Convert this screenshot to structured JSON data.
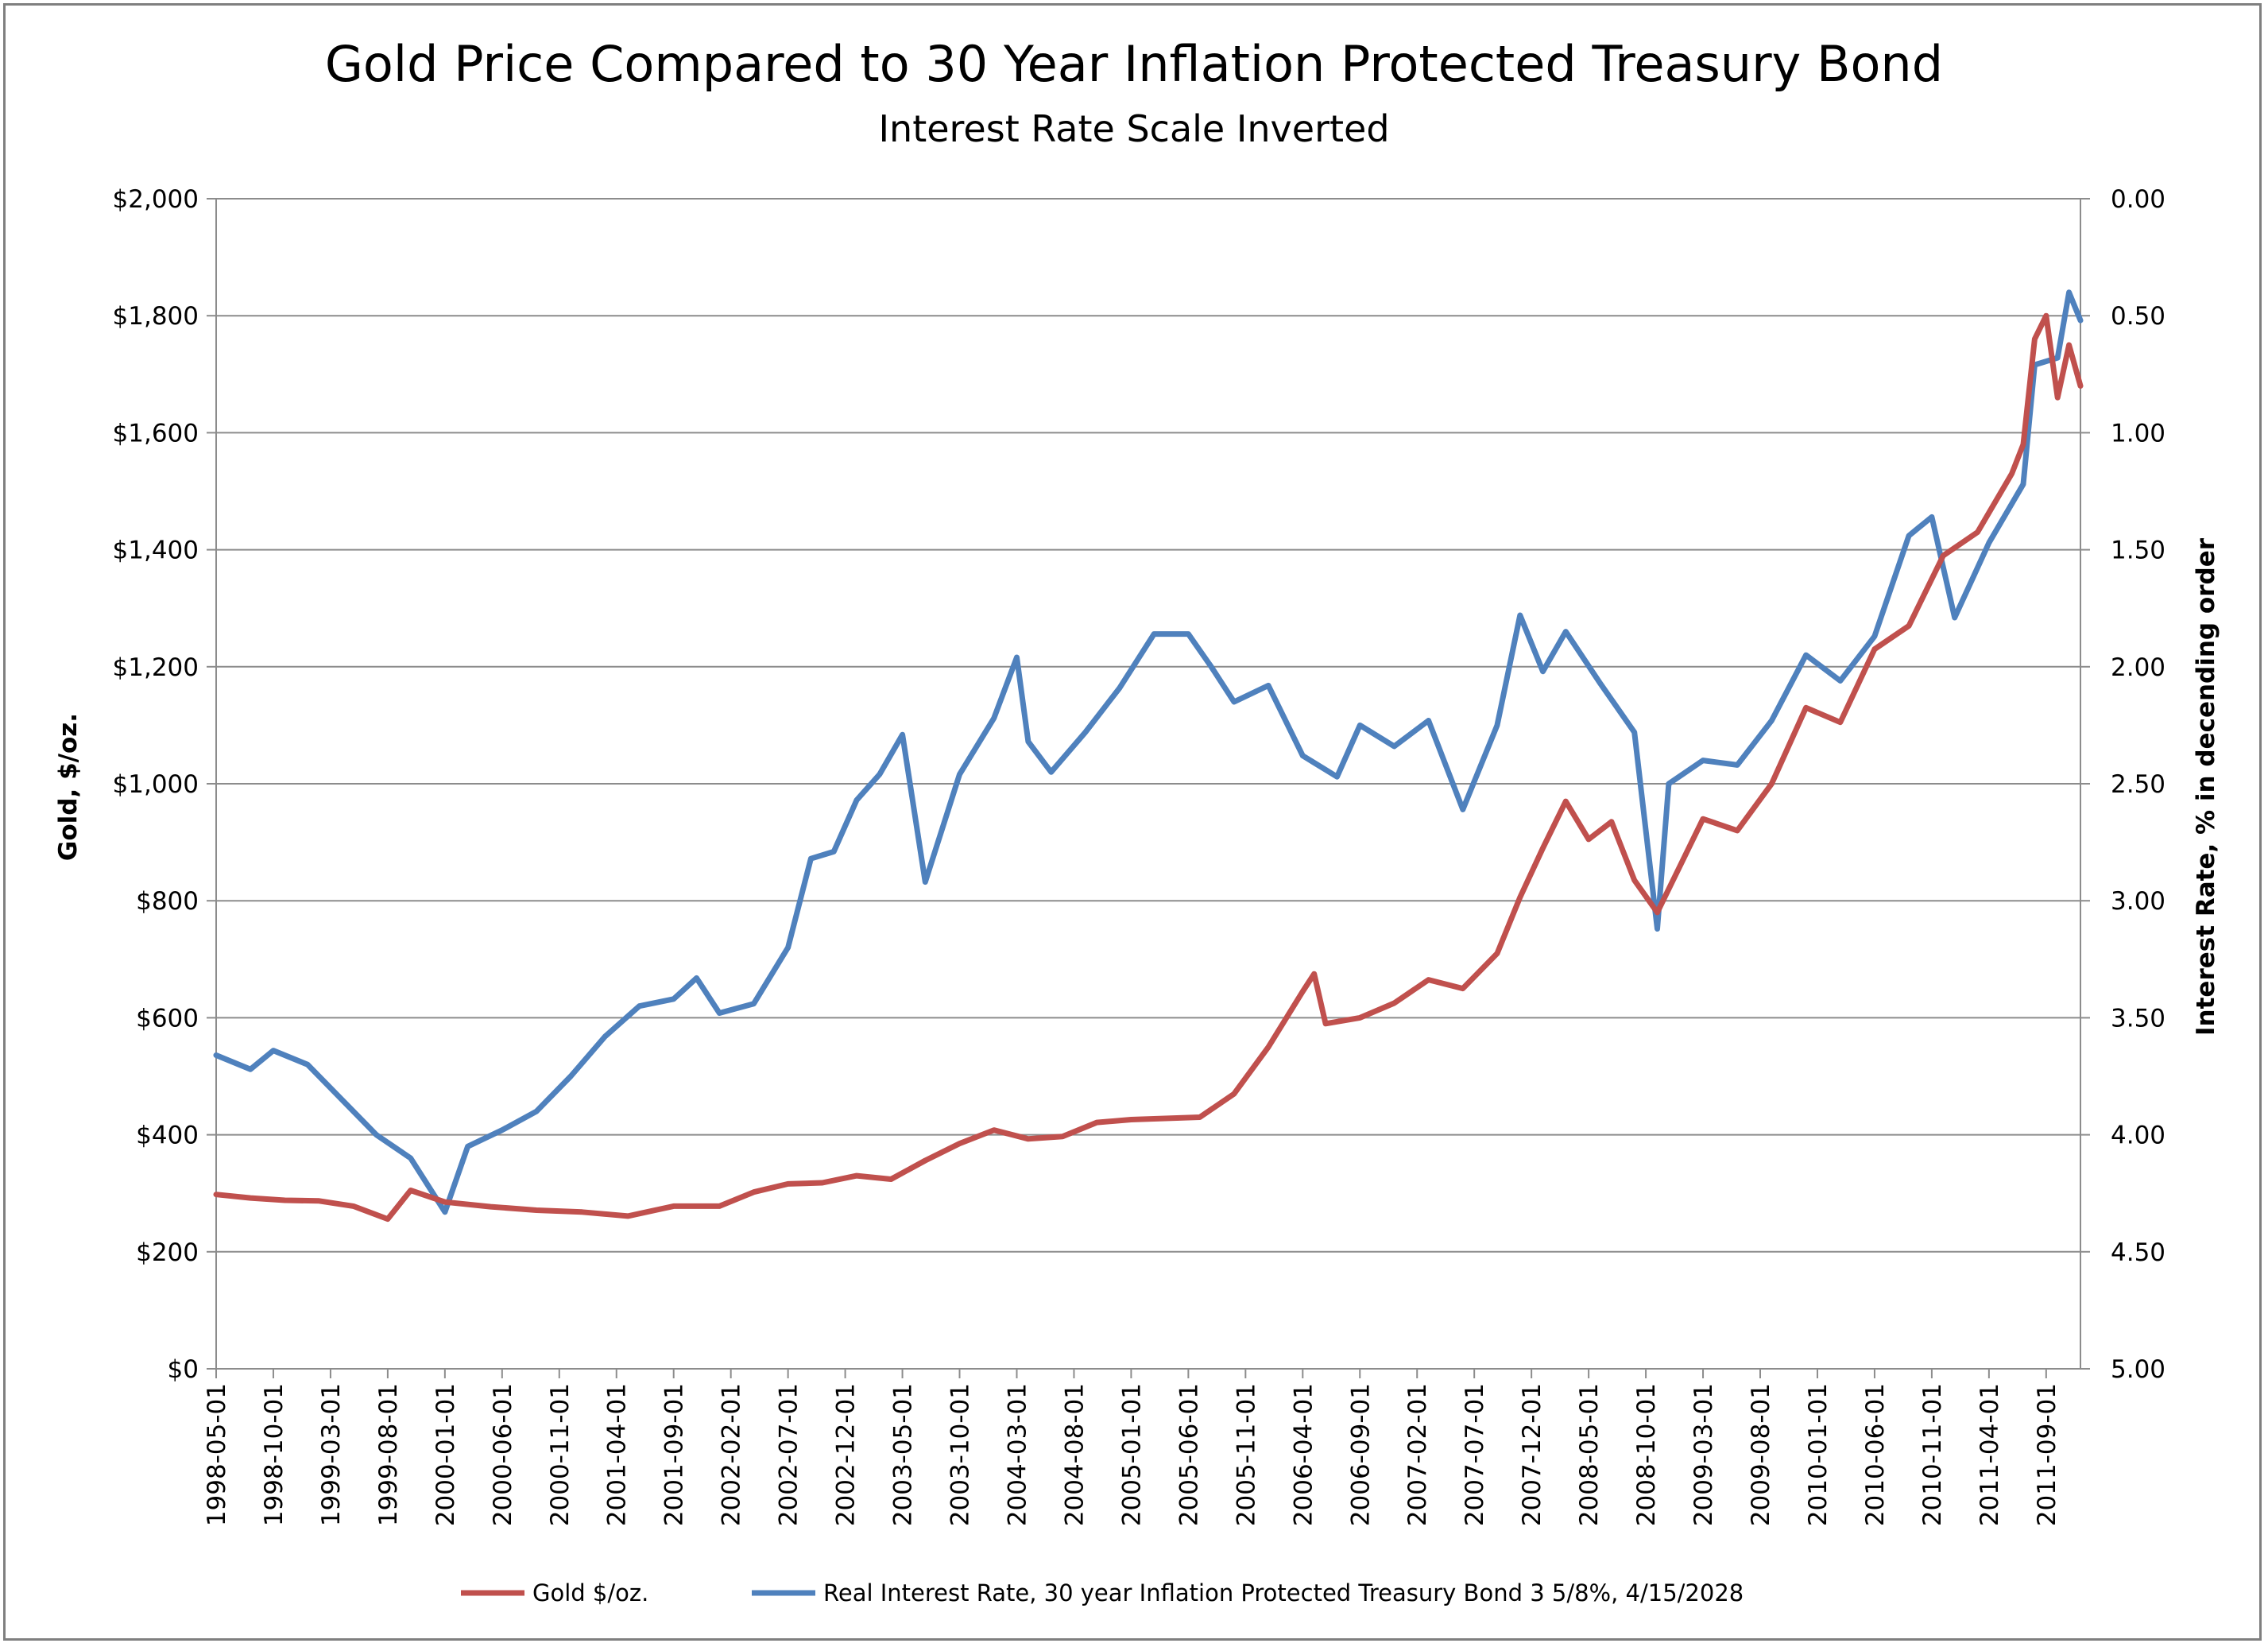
{
  "chart_data": {
    "type": "line",
    "title": "Gold Price Compared to  30 Year Inflation Protected Treasury Bond",
    "subtitle": "Interest Rate Scale Inverted",
    "ylabel": "Gold, $/oz.",
    "y2label": "Interest Rate, % in decending order",
    "ylim": [
      0,
      2000
    ],
    "y2lim": [
      0.0,
      5.0
    ],
    "y2_inverted": true,
    "yticks": [
      "$0",
      "$200",
      "$400",
      "$600",
      "$800",
      "$1,000",
      "$1,200",
      "$1,400",
      "$1,600",
      "$1,800",
      "$2,000"
    ],
    "y2ticks": [
      "0.00",
      "0.50",
      "1.00",
      "1.50",
      "2.00",
      "2.50",
      "3.00",
      "3.50",
      "4.00",
      "4.50",
      "5.00"
    ],
    "xticks": [
      "1998-05-01",
      "1998-10-01",
      "1999-03-01",
      "1999-08-01",
      "2000-01-01",
      "2000-06-01",
      "2000-11-01",
      "2001-04-01",
      "2001-09-01",
      "2002-02-01",
      "2002-07-01",
      "2002-12-01",
      "2003-05-01",
      "2003-10-01",
      "2004-03-01",
      "2004-08-01",
      "2005-01-01",
      "2005-06-01",
      "2005-11-01",
      "2006-04-01",
      "2006-09-01",
      "2007-02-01",
      "2007-07-01",
      "2007-12-01",
      "2008-05-01",
      "2008-10-01",
      "2009-03-01",
      "2009-08-01",
      "2010-01-01",
      "2010-06-01",
      "2010-11-01",
      "2011-04-01",
      "2011-09-01"
    ],
    "x_start": "1998-05-01",
    "x_end": "2011-12-01",
    "grid": true,
    "legend": "bottom",
    "series": [
      {
        "name": "Gold $/oz.",
        "axis": "left",
        "color": "#c0504d",
        "x": [
          "1998-05-01",
          "1998-08-01",
          "1998-11-01",
          "1999-02-01",
          "1999-05-01",
          "1999-08-01",
          "1999-10-01",
          "2000-01-01",
          "2000-05-01",
          "2000-09-01",
          "2001-01-01",
          "2001-05-01",
          "2001-09-01",
          "2002-01-01",
          "2002-04-01",
          "2002-07-01",
          "2002-10-01",
          "2003-01-01",
          "2003-04-01",
          "2003-07-01",
          "2003-10-01",
          "2004-01-01",
          "2004-04-01",
          "2004-07-01",
          "2004-10-01",
          "2005-01-01",
          "2005-04-01",
          "2005-07-01",
          "2005-10-01",
          "2006-01-01",
          "2006-04-01",
          "2006-05-01",
          "2006-06-01",
          "2006-09-01",
          "2006-12-01",
          "2007-03-01",
          "2007-06-01",
          "2007-09-01",
          "2007-11-01",
          "2008-01-01",
          "2008-03-01",
          "2008-05-01",
          "2008-07-01",
          "2008-09-01",
          "2008-11-01",
          "2009-01-01",
          "2009-03-01",
          "2009-06-01",
          "2009-09-01",
          "2009-12-01",
          "2010-03-01",
          "2010-06-01",
          "2010-09-01",
          "2010-12-01",
          "2011-03-01",
          "2011-06-01",
          "2011-07-01",
          "2011-08-01",
          "2011-09-01",
          "2011-10-01",
          "2011-11-01",
          "2011-12-01"
        ],
        "values": [
          298,
          292,
          288,
          287,
          278,
          256,
          305,
          285,
          277,
          271,
          268,
          261,
          278,
          278,
          302,
          316,
          318,
          330,
          324,
          356,
          385,
          408,
          393,
          397,
          421,
          426,
          428,
          430,
          470,
          550,
          645,
          675,
          590,
          600,
          625,
          665,
          650,
          710,
          806,
          890,
          970,
          905,
          935,
          835,
          780,
          860,
          940,
          920,
          1000,
          1130,
          1105,
          1230,
          1270,
          1390,
          1430,
          1530,
          1580,
          1760,
          1800,
          1660,
          1750,
          1680
        ]
      },
      {
        "name": "Real Interest Rate, 30 year Inflation Protected  Treasury Bond 3 5/8%, 4/15/2028",
        "axis": "right",
        "color": "#4f81bd",
        "x": [
          "1998-05-01",
          "1998-08-01",
          "1998-10-01",
          "1999-01-01",
          "1999-04-01",
          "1999-07-01",
          "1999-10-01",
          "2000-01-01",
          "2000-03-01",
          "2000-06-01",
          "2000-09-01",
          "2000-12-01",
          "2001-03-01",
          "2001-06-01",
          "2001-09-01",
          "2001-11-01",
          "2002-01-01",
          "2002-04-01",
          "2002-07-01",
          "2002-09-01",
          "2002-11-01",
          "2003-01-01",
          "2003-03-01",
          "2003-05-01",
          "2003-07-01",
          "2003-10-01",
          "2004-01-01",
          "2004-03-01",
          "2004-04-01",
          "2004-06-01",
          "2004-09-01",
          "2004-12-01",
          "2005-03-01",
          "2005-06-01",
          "2005-08-01",
          "2005-10-01",
          "2006-01-01",
          "2006-04-01",
          "2006-07-01",
          "2006-09-01",
          "2006-12-01",
          "2007-03-01",
          "2007-06-01",
          "2007-09-01",
          "2007-11-01",
          "2008-01-01",
          "2008-03-01",
          "2008-06-01",
          "2008-09-01",
          "2008-11-01",
          "2008-12-01",
          "2009-03-01",
          "2009-06-01",
          "2009-09-01",
          "2009-12-01",
          "2010-03-01",
          "2010-06-01",
          "2010-09-01",
          "2010-11-01",
          "2011-01-01",
          "2011-04-01",
          "2011-07-01",
          "2011-08-01",
          "2011-10-01",
          "2011-11-01",
          "2011-12-01"
        ],
        "values": [
          3.66,
          3.72,
          3.64,
          3.7,
          3.85,
          4.0,
          4.1,
          4.33,
          4.05,
          3.98,
          3.9,
          3.75,
          3.58,
          3.45,
          3.42,
          3.33,
          3.48,
          3.44,
          3.2,
          2.82,
          2.79,
          2.57,
          2.46,
          2.29,
          2.92,
          2.46,
          2.22,
          1.96,
          2.32,
          2.45,
          2.28,
          2.09,
          1.86,
          1.86,
          2.0,
          2.15,
          2.08,
          2.38,
          2.47,
          2.25,
          2.34,
          2.23,
          2.61,
          2.25,
          1.78,
          2.02,
          1.85,
          2.07,
          2.28,
          3.12,
          2.5,
          2.4,
          2.42,
          2.23,
          1.95,
          2.06,
          1.87,
          1.44,
          1.36,
          1.79,
          1.47,
          1.22,
          0.71,
          0.68,
          0.4,
          0.52
        ]
      }
    ]
  }
}
